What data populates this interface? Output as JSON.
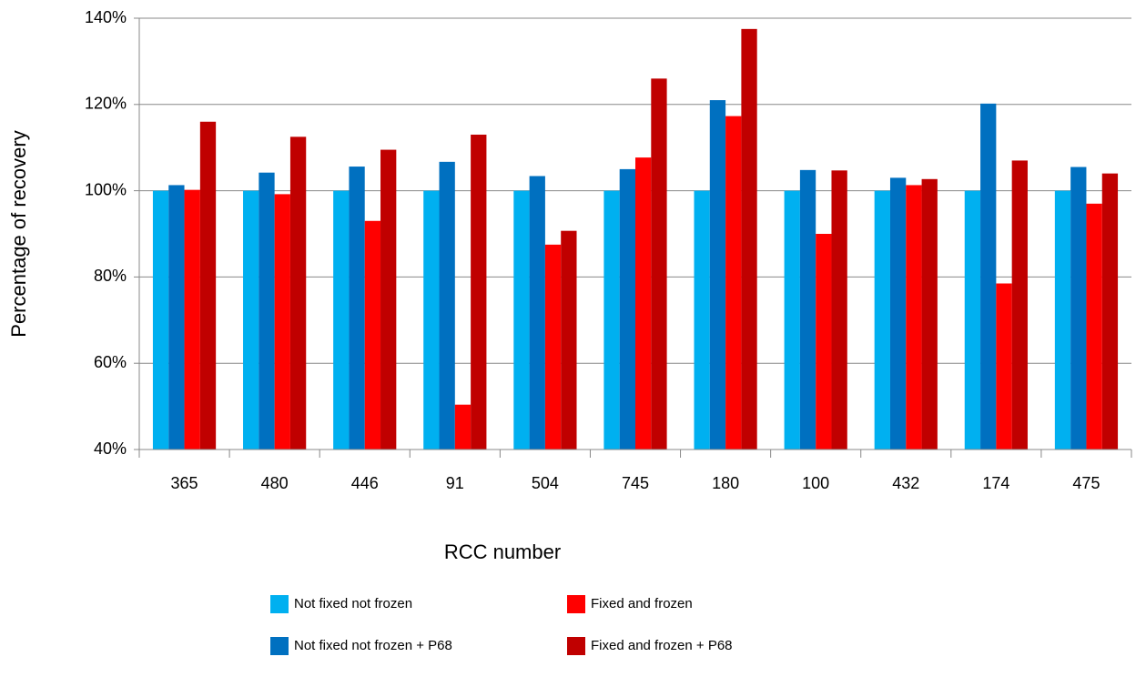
{
  "chart_data": {
    "type": "bar",
    "x_label": "RCC number",
    "y_label": "Percentage of recovery",
    "categories": [
      "365",
      "480",
      "446",
      "91",
      "504",
      "745",
      "180",
      "100",
      "432",
      "174",
      "475"
    ],
    "series": [
      {
        "name": "Not fixed not frozen",
        "color": "#00b0f0",
        "values": [
          100,
          100,
          100,
          100,
          100,
          100,
          100,
          100,
          100,
          100,
          100
        ]
      },
      {
        "name": "Not fixed not frozen + P68",
        "color": "#0070c0",
        "values": [
          101.3,
          104.2,
          105.6,
          106.7,
          103.4,
          105,
          121,
          104.8,
          103,
          120.2,
          105.5
        ]
      },
      {
        "name": "Fixed  and frozen",
        "color": "#ff0000",
        "values": [
          100.2,
          99.2,
          93,
          50.4,
          87.5,
          107.7,
          117.3,
          90,
          101.3,
          78.5,
          97
        ]
      },
      {
        "name": "Fixed and frozen + P68",
        "color": "#c00000",
        "values": [
          116,
          112.5,
          109.5,
          113,
          90.7,
          126,
          137.5,
          104.7,
          102.7,
          107,
          104
        ]
      }
    ],
    "ylim": [
      40,
      140
    ],
    "yticks": [
      {
        "value": 40,
        "label": "40%"
      },
      {
        "value": 60,
        "label": "60%"
      },
      {
        "value": 80,
        "label": "80%"
      },
      {
        "value": 100,
        "label": "100%"
      },
      {
        "value": 120,
        "label": "120%"
      },
      {
        "value": 140,
        "label": "140%"
      }
    ],
    "grid": true
  }
}
